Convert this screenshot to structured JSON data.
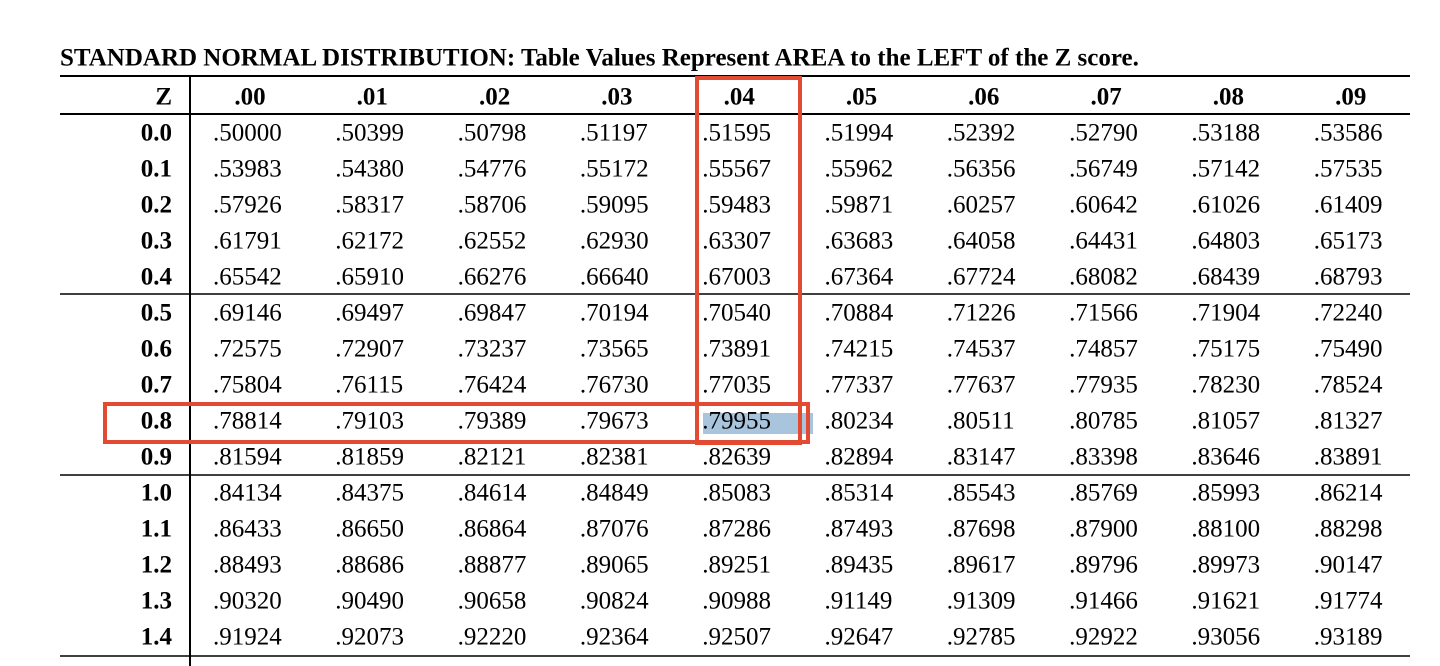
{
  "title": "STANDARD NORMAL DISTRIBUTION: Table Values Represent AREA to the LEFT of the Z score.",
  "table": {
    "header": [
      "Z",
      ".00",
      ".01",
      ".02",
      ".03",
      ".04",
      ".05",
      ".06",
      ".07",
      ".08",
      ".09"
    ],
    "rows": [
      [
        "0.0",
        ".50000",
        ".50399",
        ".50798",
        ".51197",
        ".51595",
        ".51994",
        ".52392",
        ".52790",
        ".53188",
        ".53586"
      ],
      [
        "0.1",
        ".53983",
        ".54380",
        ".54776",
        ".55172",
        ".55567",
        ".55962",
        ".56356",
        ".56749",
        ".57142",
        ".57535"
      ],
      [
        "0.2",
        ".57926",
        ".58317",
        ".58706",
        ".59095",
        ".59483",
        ".59871",
        ".60257",
        ".60642",
        ".61026",
        ".61409"
      ],
      [
        "0.3",
        ".61791",
        ".62172",
        ".62552",
        ".62930",
        ".63307",
        ".63683",
        ".64058",
        ".64431",
        ".64803",
        ".65173"
      ],
      [
        "0.4",
        ".65542",
        ".65910",
        ".66276",
        ".66640",
        ".67003",
        ".67364",
        ".67724",
        ".68082",
        ".68439",
        ".68793"
      ],
      [
        "0.5",
        ".69146",
        ".69497",
        ".69847",
        ".70194",
        ".70540",
        ".70884",
        ".71226",
        ".71566",
        ".71904",
        ".72240"
      ],
      [
        "0.6",
        ".72575",
        ".72907",
        ".73237",
        ".73565",
        ".73891",
        ".74215",
        ".74537",
        ".74857",
        ".75175",
        ".75490"
      ],
      [
        "0.7",
        ".75804",
        ".76115",
        ".76424",
        ".76730",
        ".77035",
        ".77337",
        ".77637",
        ".77935",
        ".78230",
        ".78524"
      ],
      [
        "0.8",
        ".78814",
        ".79103",
        ".79389",
        ".79673",
        ".79955",
        ".80234",
        ".80511",
        ".80785",
        ".81057",
        ".81327"
      ],
      [
        "0.9",
        ".81594",
        ".81859",
        ".82121",
        ".82381",
        ".82639",
        ".82894",
        ".83147",
        ".83398",
        ".83646",
        ".83891"
      ],
      [
        "1.0",
        ".84134",
        ".84375",
        ".84614",
        ".84849",
        ".85083",
        ".85314",
        ".85543",
        ".85769",
        ".85993",
        ".86214"
      ],
      [
        "1.1",
        ".86433",
        ".86650",
        ".86864",
        ".87076",
        ".87286",
        ".87493",
        ".87698",
        ".87900",
        ".88100",
        ".88298"
      ],
      [
        "1.2",
        ".88493",
        ".88686",
        ".88877",
        ".89065",
        ".89251",
        ".89435",
        ".89617",
        ".89796",
        ".89973",
        ".90147"
      ],
      [
        "1.3",
        ".90320",
        ".90490",
        ".90658",
        ".90824",
        ".90988",
        ".91149",
        ".91309",
        ".91466",
        ".91621",
        ".91774"
      ],
      [
        "1.4",
        ".91924",
        ".92073",
        ".92220",
        ".92364",
        ".92507",
        ".92647",
        ".92785",
        ".92922",
        ".93056",
        ".93189"
      ]
    ]
  }
}
